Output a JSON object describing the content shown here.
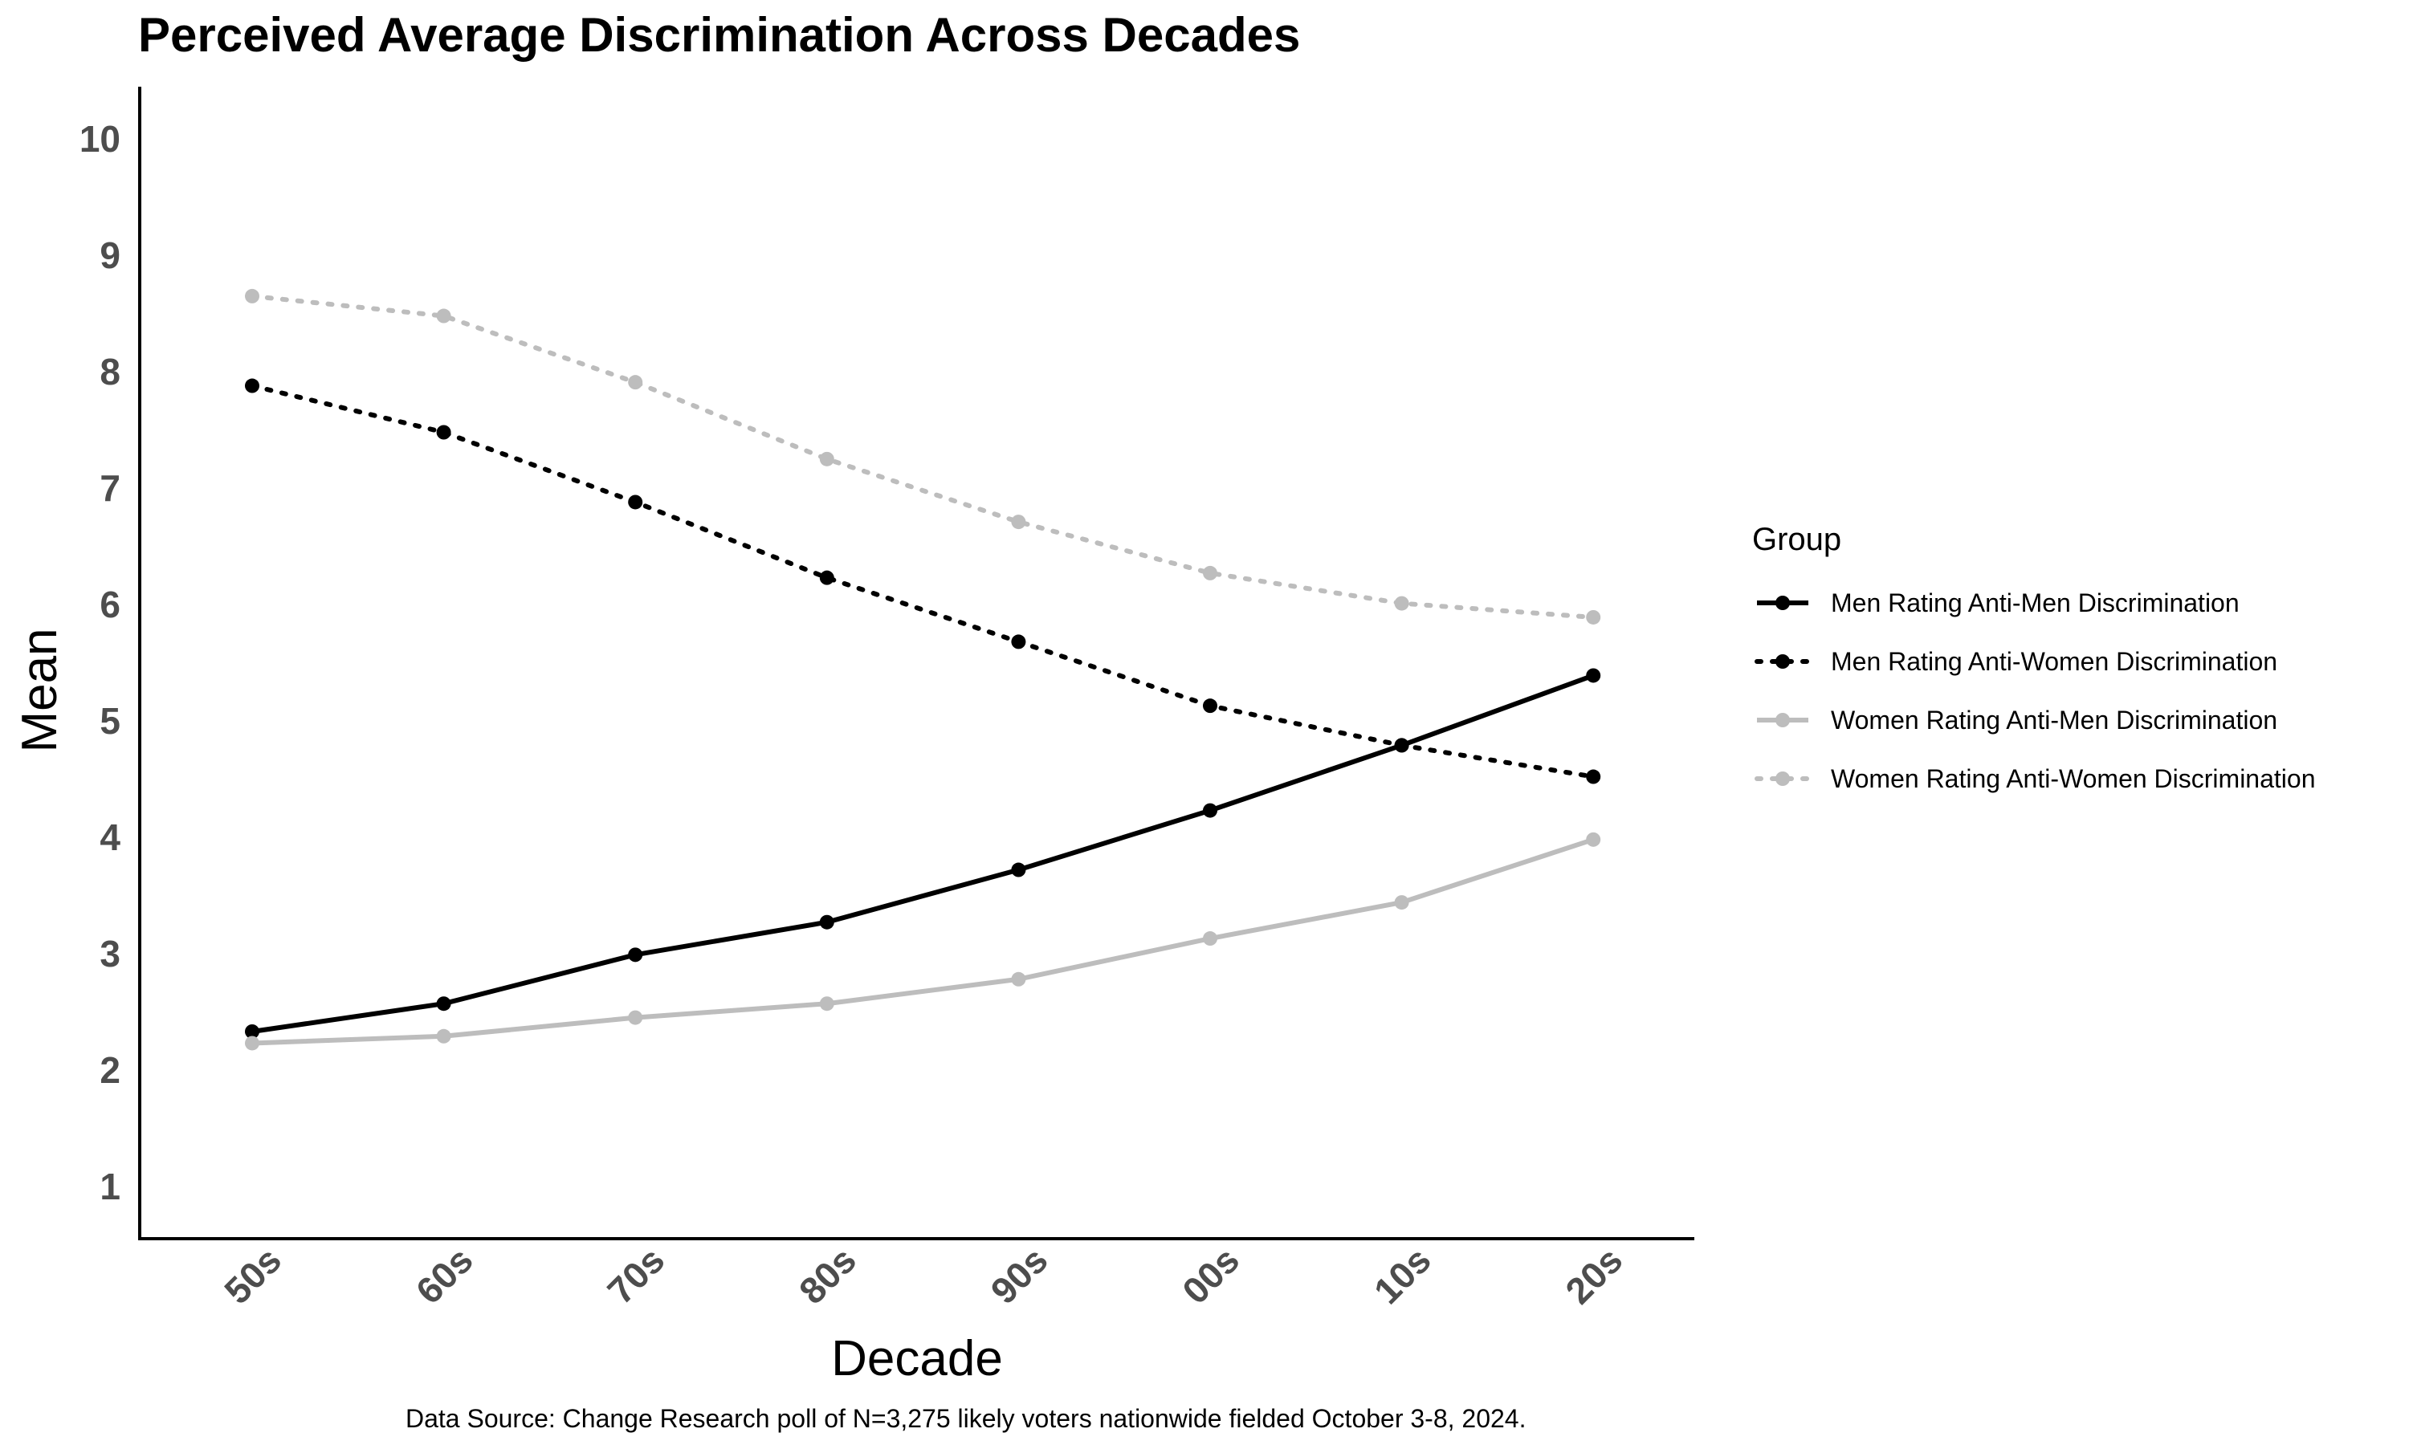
{
  "chart_data": {
    "type": "line",
    "title": "Perceived Average Discrimination Across Decades",
    "xlabel": "Decade",
    "ylabel": "Mean",
    "categories": [
      "50s",
      "60s",
      "70s",
      "80s",
      "90s",
      "00s",
      "10s",
      "20s"
    ],
    "y_ticks": [
      "1",
      "2",
      "3",
      "4",
      "5",
      "6",
      "7",
      "8",
      "9",
      "10"
    ],
    "ylim": [
      0.55,
      10.45
    ],
    "grid": false,
    "legend": {
      "title": "Group",
      "placement": "right"
    },
    "series": [
      {
        "name": "Men Rating Anti-Men Discrimination",
        "values": [
          2.33,
          2.57,
          2.99,
          3.27,
          3.72,
          4.23,
          4.79,
          5.39
        ],
        "color": "#000000",
        "line_style": "solid"
      },
      {
        "name": "Men Rating Anti-Women Discrimination",
        "values": [
          7.88,
          7.48,
          6.88,
          6.23,
          5.68,
          5.13,
          4.79,
          4.52
        ],
        "color": "#000000",
        "line_style": "dotted"
      },
      {
        "name": "Women Rating Anti-Men Discrimination",
        "values": [
          2.23,
          2.29,
          2.45,
          2.57,
          2.78,
          3.13,
          3.44,
          3.98
        ],
        "color": "#bdbdbd",
        "line_style": "solid"
      },
      {
        "name": "Women Rating Anti-Women Discrimination",
        "values": [
          8.65,
          8.48,
          7.91,
          7.25,
          6.71,
          6.27,
          6.01,
          5.89
        ],
        "color": "#bdbdbd",
        "line_style": "dotted"
      }
    ],
    "caption": "Data Source: Change Research poll of N=3,275 likely voters nationwide fielded October 3-8, 2024."
  }
}
